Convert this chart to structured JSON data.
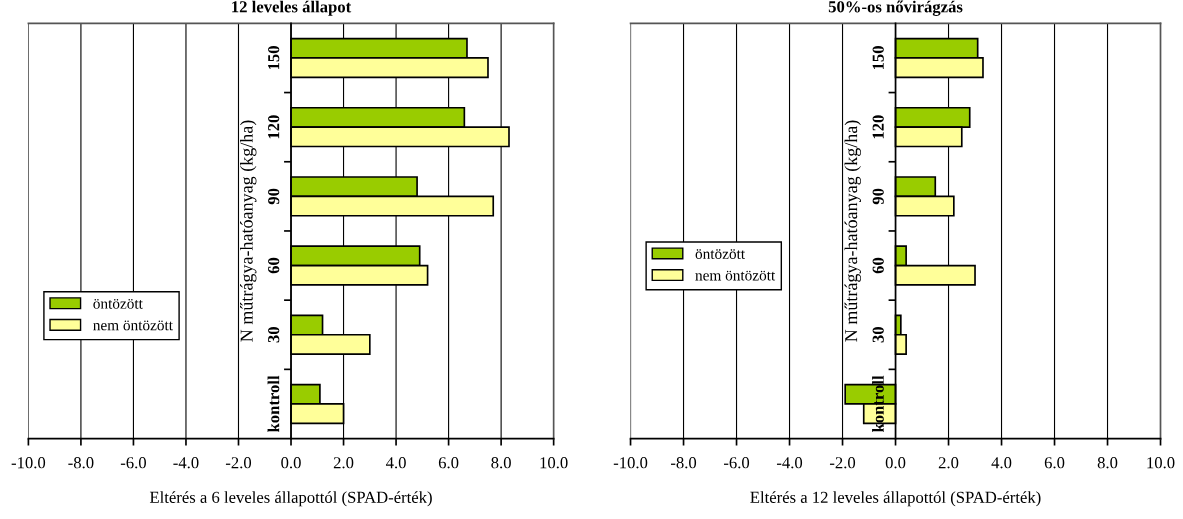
{
  "chart_data": [
    {
      "type": "bar",
      "orientation": "horizontal",
      "title": "12 leveles állapot",
      "xlabel": "Eltérés a 6 leveles állapottól (SPAD-érték)",
      "ylabel": "N műtrágya-hatóanyag (kg/ha)",
      "categories": [
        "150",
        "120",
        "90",
        "60",
        "30",
        "kontroll"
      ],
      "series": [
        {
          "name": "öntözött",
          "color": "#99cc00",
          "values": [
            6.7,
            6.6,
            4.8,
            4.9,
            1.2,
            1.1
          ]
        },
        {
          "name": "nem öntözött",
          "color": "#ffff99",
          "values": [
            7.5,
            8.3,
            7.7,
            5.2,
            3.0,
            2.0
          ]
        }
      ],
      "xlim": [
        -10,
        10
      ],
      "xticks": [
        {
          "value": -10,
          "label": "-10.0"
        },
        {
          "value": -8,
          "label": "-8.0"
        },
        {
          "value": -6,
          "label": "-6.0"
        },
        {
          "value": -4,
          "label": "-4.0"
        },
        {
          "value": -2,
          "label": "-2.0"
        },
        {
          "value": 0,
          "label": "0.0"
        },
        {
          "value": 2,
          "label": "2.0"
        },
        {
          "value": 4,
          "label": "4.0"
        },
        {
          "value": 6,
          "label": "6.0"
        },
        {
          "value": 8,
          "label": "8.0"
        },
        {
          "value": 10,
          "label": "10.0"
        }
      ],
      "grid": "x",
      "legend": "bottom left"
    },
    {
      "type": "bar",
      "orientation": "horizontal",
      "title": "50%-os nővirágzás",
      "xlabel": "Eltérés a 12 leveles állapottól (SPAD-érték)",
      "ylabel": "N műtrágya-hatóanyag (kg/ha)",
      "categories": [
        "150",
        "120",
        "90",
        "60",
        "30",
        "kontroll"
      ],
      "series": [
        {
          "name": "öntözött",
          "color": "#99cc00",
          "values": [
            3.1,
            2.8,
            1.5,
            0.4,
            0.2,
            -1.9
          ]
        },
        {
          "name": "nem öntözött",
          "color": "#ffff99",
          "values": [
            3.3,
            2.5,
            2.2,
            3.0,
            0.4,
            -1.2
          ]
        }
      ],
      "xlim": [
        -10,
        10
      ],
      "xticks": [
        {
          "value": -10,
          "label": "-10.0"
        },
        {
          "value": -8,
          "label": "-8.0"
        },
        {
          "value": -6,
          "label": "-6.0"
        },
        {
          "value": -4,
          "label": "-4.0"
        },
        {
          "value": -2,
          "label": "-2.0"
        },
        {
          "value": 0,
          "label": "0.0"
        },
        {
          "value": 2,
          "label": "2.0"
        },
        {
          "value": 4,
          "label": "4.0"
        },
        {
          "value": 6,
          "label": "6.0"
        },
        {
          "value": 8,
          "label": "8.0"
        },
        {
          "value": 10,
          "label": "10.0"
        }
      ],
      "grid": "x",
      "legend": "bottom left"
    }
  ]
}
